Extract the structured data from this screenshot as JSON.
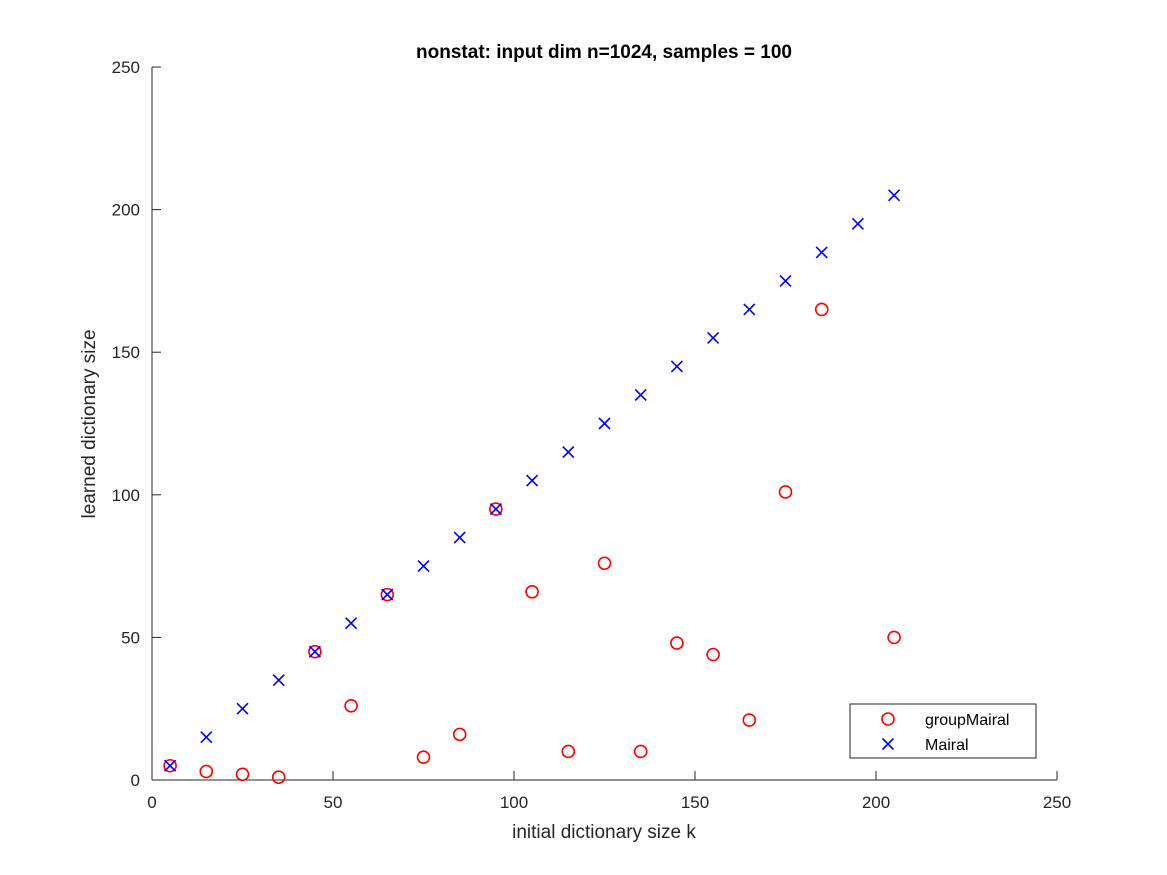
{
  "chart_data": {
    "type": "scatter",
    "title": "nonstat: input dim n=1024, samples = 100",
    "xlabel": "initial dictionary size k",
    "ylabel": "learned dictionary size",
    "xlim": [
      0,
      250
    ],
    "ylim": [
      0,
      250
    ],
    "xticks": [
      0,
      50,
      100,
      150,
      200,
      250
    ],
    "yticks": [
      0,
      50,
      100,
      150,
      200,
      250
    ],
    "grid": false,
    "legend_position": "bottom-right",
    "series": [
      {
        "name": "groupMairal",
        "marker": "circle",
        "color": "#ff0000",
        "x": [
          5,
          15,
          25,
          35,
          45,
          55,
          65,
          75,
          85,
          95,
          105,
          115,
          125,
          135,
          145,
          155,
          165,
          175,
          185,
          205
        ],
        "y": [
          5,
          3,
          2,
          1,
          45,
          26,
          65,
          8,
          16,
          95,
          66,
          10,
          76,
          10,
          48,
          44,
          21,
          101,
          165,
          50
        ]
      },
      {
        "name": "Mairal",
        "marker": "x",
        "color": "#0000ff",
        "x": [
          5,
          15,
          25,
          35,
          45,
          55,
          65,
          75,
          85,
          95,
          105,
          115,
          125,
          135,
          145,
          155,
          165,
          175,
          185,
          195,
          205
        ],
        "y": [
          5,
          15,
          25,
          35,
          45,
          55,
          65,
          75,
          85,
          95,
          105,
          115,
          125,
          135,
          145,
          155,
          165,
          175,
          185,
          195,
          205
        ]
      }
    ]
  }
}
